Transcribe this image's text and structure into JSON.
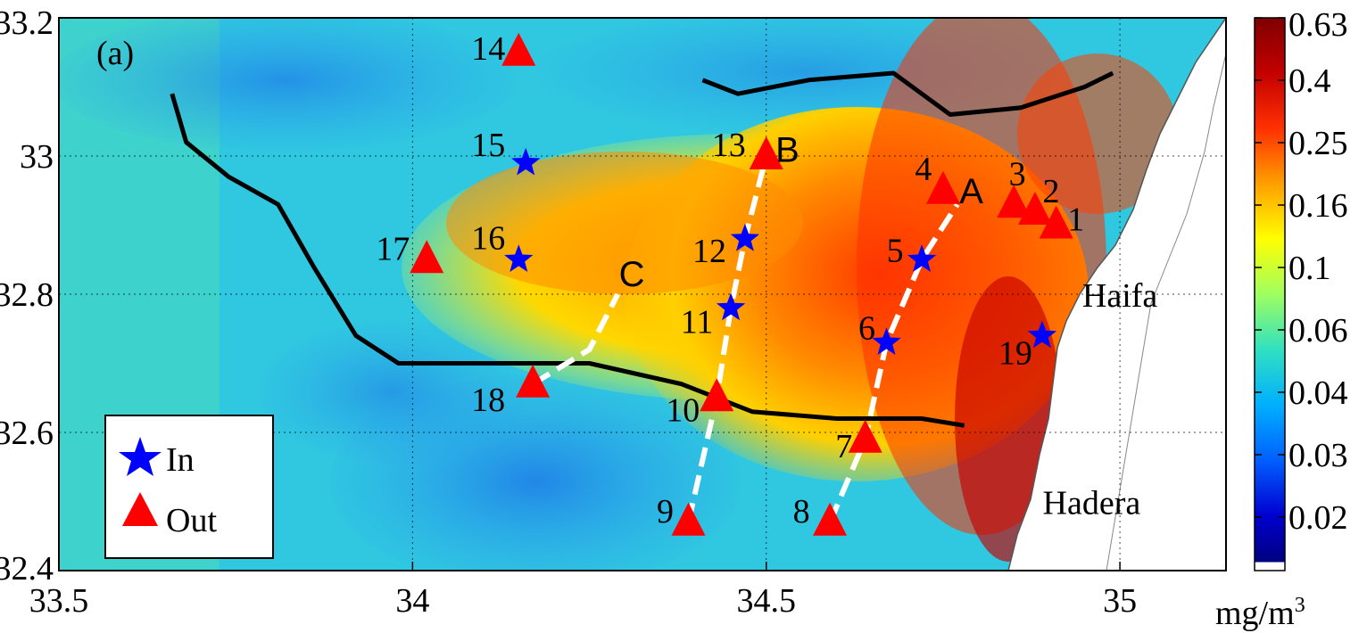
{
  "panel_label": "(a)",
  "axes": {
    "x_ticks": [
      "33.5",
      "34",
      "34.5",
      "35"
    ],
    "x_values": [
      33.5,
      34.0,
      34.5,
      35.0
    ],
    "y_ticks": [
      "32.4",
      "32.6",
      "32.8",
      "33",
      "33.2"
    ],
    "y_values": [
      32.4,
      32.6,
      32.8,
      33.0,
      33.2
    ],
    "x_range": [
      33.5,
      35.15
    ],
    "y_range": [
      32.4,
      33.2
    ],
    "grid": true
  },
  "colorbar": {
    "ticks": [
      "0.63",
      "0.4",
      "0.25",
      "0.16",
      "0.1",
      "0.06",
      "0.04",
      "0.03",
      "0.02"
    ],
    "unit": "mg/m",
    "unit_sup": "3",
    "colors": [
      "#7f0000",
      "#d40000",
      "#ff3f00",
      "#ff9f00",
      "#ffff00",
      "#9fff5f",
      "#3fdfbf",
      "#00afff",
      "#005fff",
      "#0000cf",
      "#00007f"
    ]
  },
  "legend": {
    "items": [
      {
        "symbol": "star-icon",
        "label": "In",
        "color": "#0000ff"
      },
      {
        "symbol": "triangle-icon",
        "label": "Out",
        "color": "#ff0000"
      }
    ]
  },
  "stations": [
    {
      "id": "1",
      "lon": 34.91,
      "lat": 32.9,
      "type": "out"
    },
    {
      "id": "2",
      "lon": 34.88,
      "lat": 32.92,
      "type": "out"
    },
    {
      "id": "3",
      "lon": 34.85,
      "lat": 32.93,
      "type": "out"
    },
    {
      "id": "4",
      "lon": 34.75,
      "lat": 32.95,
      "type": "out"
    },
    {
      "id": "5",
      "lon": 34.72,
      "lat": 32.85,
      "type": "in"
    },
    {
      "id": "6",
      "lon": 34.67,
      "lat": 32.73,
      "type": "in"
    },
    {
      "id": "7",
      "lon": 34.64,
      "lat": 32.59,
      "type": "out"
    },
    {
      "id": "8",
      "lon": 34.59,
      "lat": 32.47,
      "type": "out"
    },
    {
      "id": "9",
      "lon": 34.39,
      "lat": 32.47,
      "type": "out"
    },
    {
      "id": "10",
      "lon": 34.43,
      "lat": 32.65,
      "type": "out"
    },
    {
      "id": "11",
      "lon": 34.45,
      "lat": 32.78,
      "type": "in"
    },
    {
      "id": "12",
      "lon": 34.47,
      "lat": 32.88,
      "type": "in"
    },
    {
      "id": "13",
      "lon": 34.5,
      "lat": 33.0,
      "type": "out"
    },
    {
      "id": "14",
      "lon": 34.15,
      "lat": 33.15,
      "type": "out"
    },
    {
      "id": "15",
      "lon": 34.16,
      "lat": 32.99,
      "type": "in"
    },
    {
      "id": "16",
      "lon": 34.15,
      "lat": 32.85,
      "type": "in"
    },
    {
      "id": "17",
      "lon": 34.02,
      "lat": 32.85,
      "type": "out"
    },
    {
      "id": "18",
      "lon": 34.17,
      "lat": 32.67,
      "type": "out"
    },
    {
      "id": "19",
      "lon": 34.89,
      "lat": 32.74,
      "type": "in"
    }
  ],
  "transect_labels": [
    {
      "id": "A",
      "lon": 34.79,
      "lat": 32.95
    },
    {
      "id": "B",
      "lon": 34.53,
      "lat": 33.01
    },
    {
      "id": "C",
      "lon": 34.31,
      "lat": 32.83
    }
  ],
  "transects": [
    {
      "name": "A",
      "points": [
        [
          34.59,
          32.47
        ],
        [
          34.64,
          32.59
        ],
        [
          34.67,
          32.73
        ],
        [
          34.72,
          32.85
        ],
        [
          34.77,
          32.93
        ]
      ]
    },
    {
      "name": "B",
      "points": [
        [
          34.39,
          32.47
        ],
        [
          34.43,
          32.65
        ],
        [
          34.45,
          32.78
        ],
        [
          34.47,
          32.88
        ],
        [
          34.5,
          33.0
        ]
      ]
    },
    {
      "name": "C",
      "points": [
        [
          34.17,
          32.67
        ],
        [
          34.25,
          32.72
        ],
        [
          34.29,
          32.8
        ]
      ]
    }
  ],
  "fronts": [
    {
      "points": [
        [
          33.66,
          33.09
        ],
        [
          33.68,
          33.02
        ],
        [
          33.74,
          32.97
        ],
        [
          33.81,
          32.93
        ],
        [
          33.86,
          32.84
        ],
        [
          33.92,
          32.74
        ],
        [
          33.98,
          32.7
        ],
        [
          34.1,
          32.7
        ],
        [
          34.25,
          32.7
        ],
        [
          34.38,
          32.67
        ],
        [
          34.48,
          32.63
        ],
        [
          34.6,
          32.62
        ],
        [
          34.72,
          32.62
        ],
        [
          34.78,
          32.61
        ]
      ]
    },
    {
      "points": [
        [
          34.41,
          33.11
        ],
        [
          34.46,
          33.09
        ],
        [
          34.56,
          33.11
        ],
        [
          34.68,
          33.12
        ],
        [
          34.76,
          33.06
        ],
        [
          34.86,
          33.07
        ],
        [
          34.95,
          33.1
        ],
        [
          34.99,
          33.12
        ]
      ]
    }
  ],
  "cities": [
    {
      "name": "Haifa",
      "lon": 35.0,
      "lat": 32.8
    },
    {
      "name": "Hadera",
      "lon": 34.96,
      "lat": 32.5
    }
  ]
}
